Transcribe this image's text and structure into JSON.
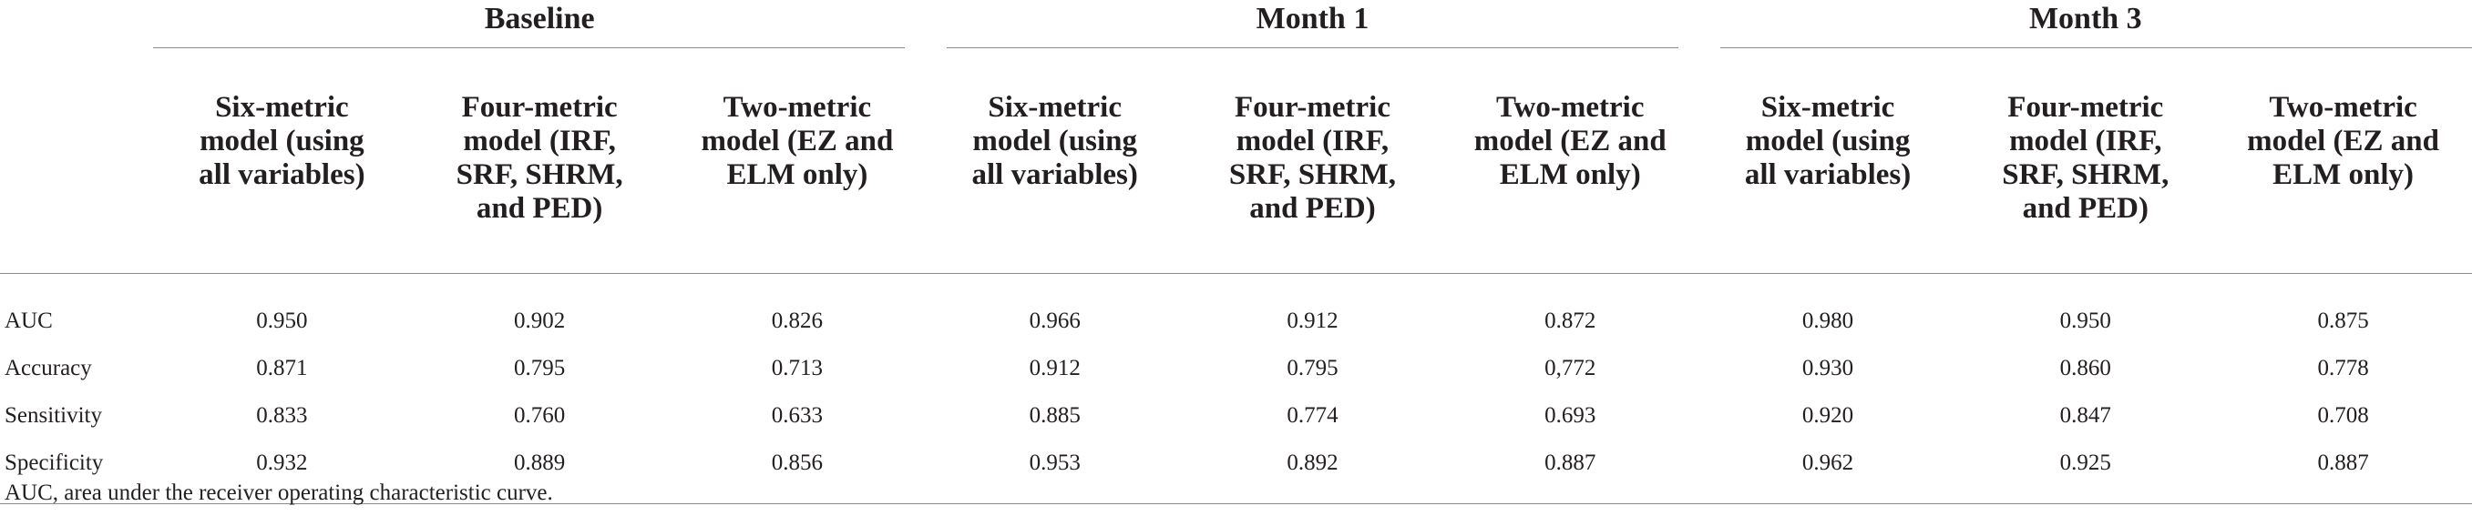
{
  "groups": [
    {
      "label": "Baseline"
    },
    {
      "label": "Month 1"
    },
    {
      "label": "Month 3"
    }
  ],
  "subheaders": [
    {
      "line1": "Six-metric",
      "line2": "model (using",
      "line3": "all variables)",
      "line4": ""
    },
    {
      "line1": "Four-metric",
      "line2": "model (IRF,",
      "line3": "SRF, SHRM,",
      "line4": "and PED)"
    },
    {
      "line1": "Two-metric",
      "line2": "model (EZ and",
      "line3": "ELM only)",
      "line4": ""
    }
  ],
  "rows": [
    {
      "label": "AUC",
      "values": [
        "0.950",
        "0.902",
        "0.826",
        "0.966",
        "0.912",
        "0.872",
        "0.980",
        "0.950",
        "0.875"
      ]
    },
    {
      "label": "Accuracy",
      "values": [
        "0.871",
        "0.795",
        "0.713",
        "0.912",
        "0.795",
        "0,772",
        "0.930",
        "0.860",
        "0.778"
      ]
    },
    {
      "label": "Sensitivity",
      "values": [
        "0.833",
        "0.760",
        "0.633",
        "0.885",
        "0.774",
        "0.693",
        "0.920",
        "0.847",
        "0.708"
      ]
    },
    {
      "label": "Specificity",
      "values": [
        "0.932",
        "0.889",
        "0.856",
        "0.953",
        "0.892",
        "0.887",
        "0.962",
        "0.925",
        "0.887"
      ]
    }
  ],
  "footnote": "AUC, area under the receiver operating characteristic curve."
}
